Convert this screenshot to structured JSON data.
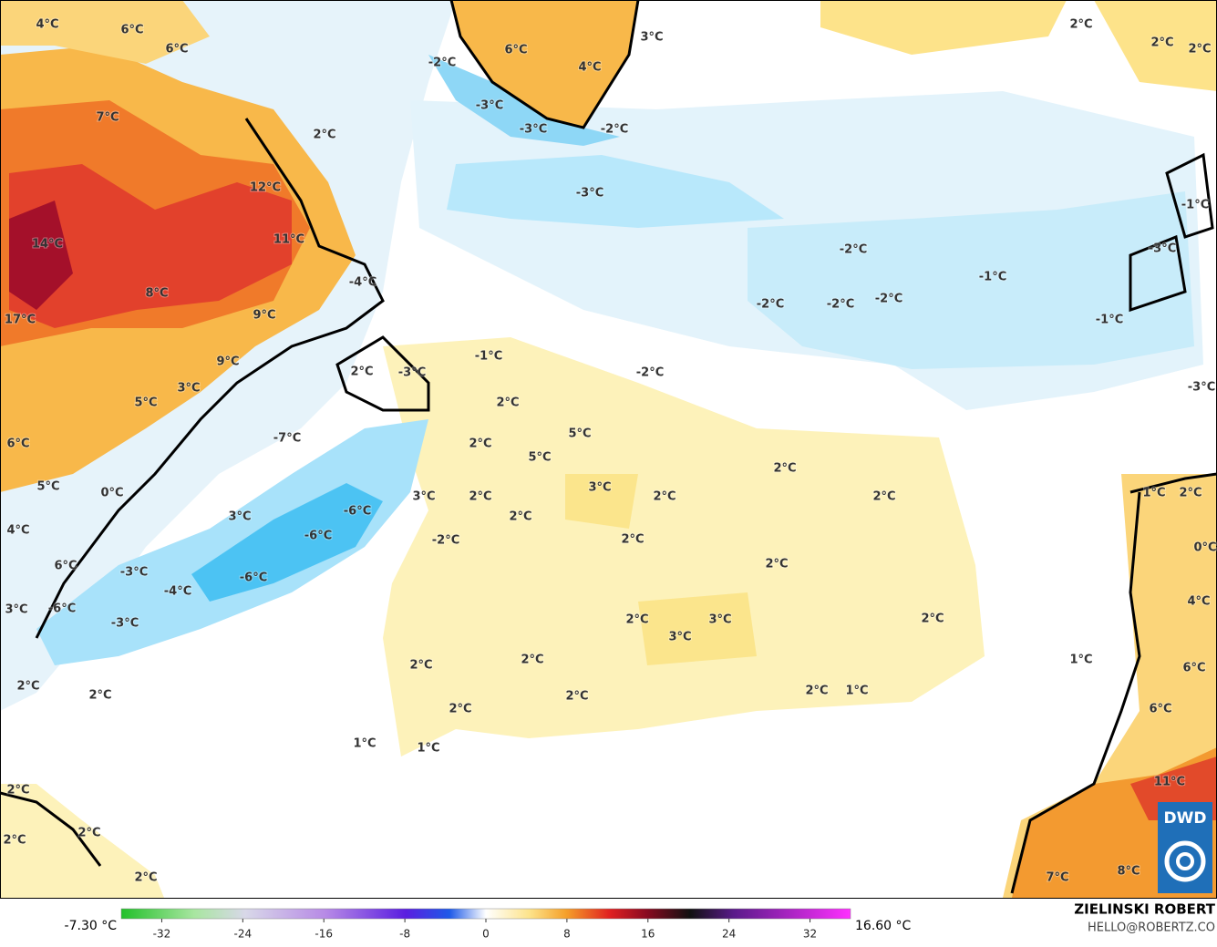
{
  "map": {
    "labels": [
      "4°C",
      "6°C",
      "6°C",
      "7°C",
      "2°C",
      "12°C",
      "11°C",
      "14°C",
      "8°C",
      "9°C",
      "17°C",
      "-4°C",
      "9°C",
      "3°C",
      "5°C",
      "2°C",
      "-3°C",
      "-7°C",
      "6°C",
      "5°C",
      "0°C",
      "4°C",
      "3°C",
      "-6°C",
      "-6°C",
      "-6°C",
      "6°C",
      "-3°C",
      "-4°C",
      "3°C",
      "-6°C",
      "-3°C",
      "2°C",
      "2°C",
      "-2°C",
      "6°C",
      "4°C",
      "3°C",
      "-3°C",
      "-3°C",
      "-2°C",
      "-3°C",
      "2°C",
      "2°C",
      "2°C",
      "-2°C",
      "-1°C",
      "-2°C",
      "-2°C",
      "-2°C",
      "-1°C",
      "-1°C",
      "-3°C",
      "-3°C",
      "-1°C",
      "-2°C",
      "2°C",
      "5°C",
      "2°C",
      "5°C",
      "2°C",
      "3°C",
      "2°C",
      "2°C",
      "3°C",
      "2°C",
      "2°C",
      "-2°C",
      "2°C",
      "2°C",
      "2°C",
      "3°C",
      "3°C",
      "2°C",
      "2°C",
      "2°C",
      "1°C",
      "2°C",
      "1°C",
      "2°C",
      "2°C",
      "1°C",
      "1°C",
      "1°C",
      "2°C",
      "0°C",
      "4°C",
      "6°C",
      "6°C",
      "11°C",
      "8°C",
      "7°C",
      "2°C",
      "2°C",
      "2°C",
      "2°C"
    ]
  },
  "colorbar": {
    "min_label": "-7.30 °C",
    "max_label": "16.60 °C",
    "range": [
      -36,
      36
    ],
    "ticks": [
      -32,
      -24,
      -16,
      -8,
      0,
      8,
      16,
      24,
      32
    ]
  },
  "credits": {
    "author": "ZIELINSKI ROBERT",
    "contact": "HELLO@ROBERTZ.CO",
    "logo": "DWD"
  }
}
